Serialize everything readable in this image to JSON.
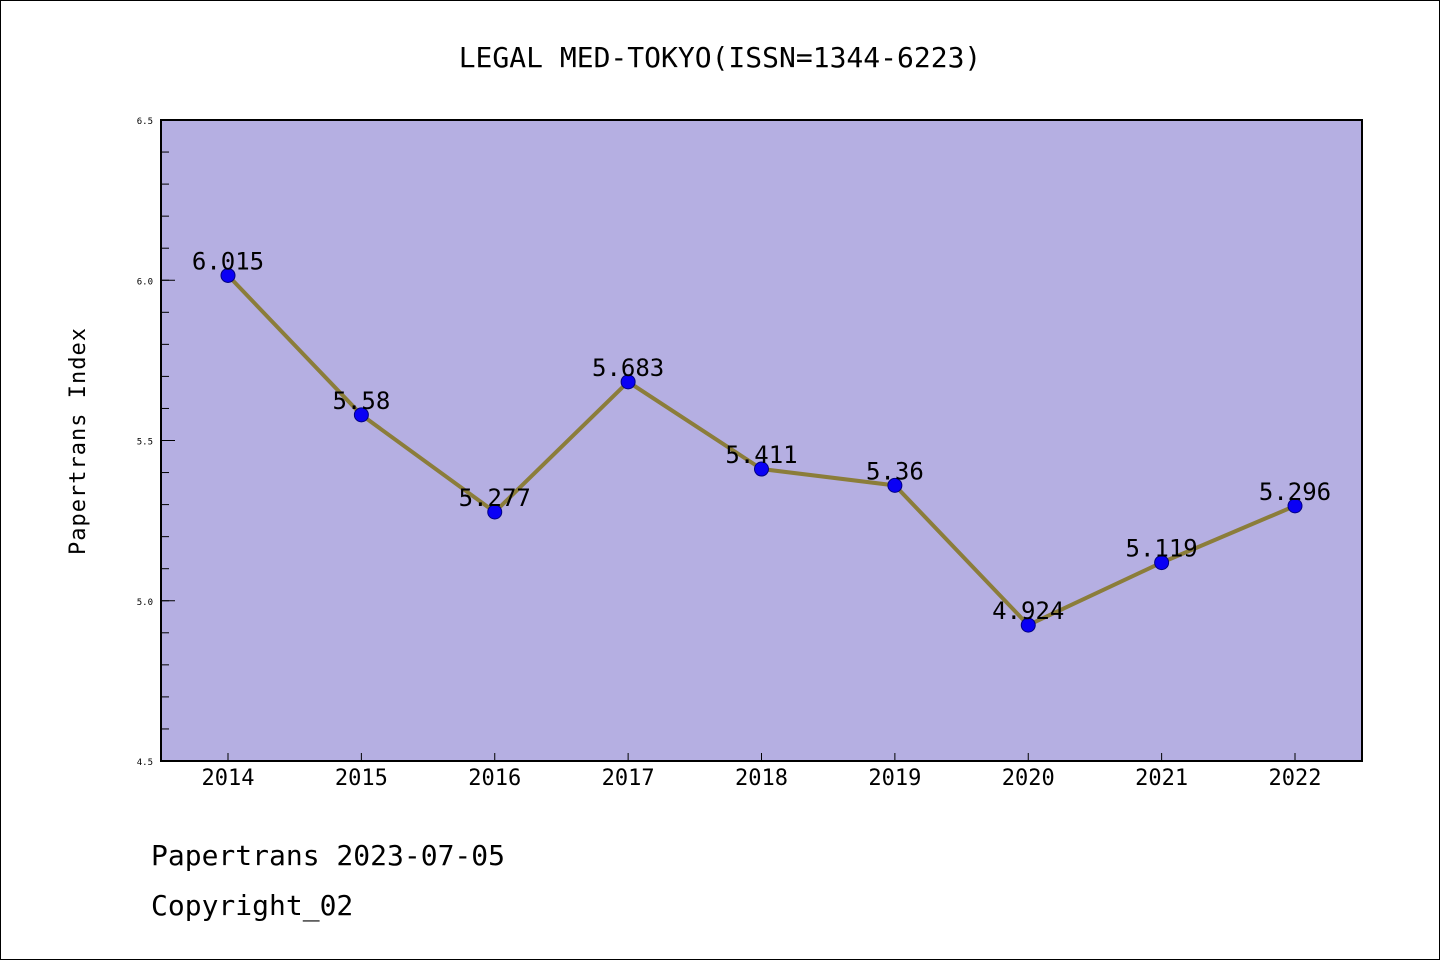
{
  "title": "LEGAL MED-TOKYO(ISSN=1344-6223)",
  "footer": {
    "line1": "Papertrans 2023-07-05",
    "line2": "Copyright_02"
  },
  "colors": {
    "plot_background": "#b5afe2",
    "line": "#8b7d3a",
    "marker_fill": "#0a00f5",
    "marker_stroke": "#000080",
    "axis": "#000000"
  },
  "chart_data": {
    "type": "line",
    "title": "LEGAL MED-TOKYO(ISSN=1344-6223)",
    "xlabel": "",
    "ylabel": "Papertrans Index",
    "categories": [
      "2014",
      "2015",
      "2016",
      "2017",
      "2018",
      "2019",
      "2020",
      "2021",
      "2022"
    ],
    "series": [
      {
        "values": [
          6.015,
          5.58,
          5.277,
          5.683,
          5.411,
          5.36,
          4.924,
          5.119,
          5.296
        ],
        "labels": [
          "6.015",
          "5.58",
          "5.277",
          "5.683",
          "5.411",
          "5.36",
          "4.924",
          "5.119",
          "5.296"
        ]
      }
    ],
    "ylim": [
      4.5,
      6.5
    ],
    "yticks": [
      "4.5",
      "5.0",
      "5.5",
      "6.0",
      "6.5"
    ],
    "grid": false,
    "legend": "none"
  }
}
